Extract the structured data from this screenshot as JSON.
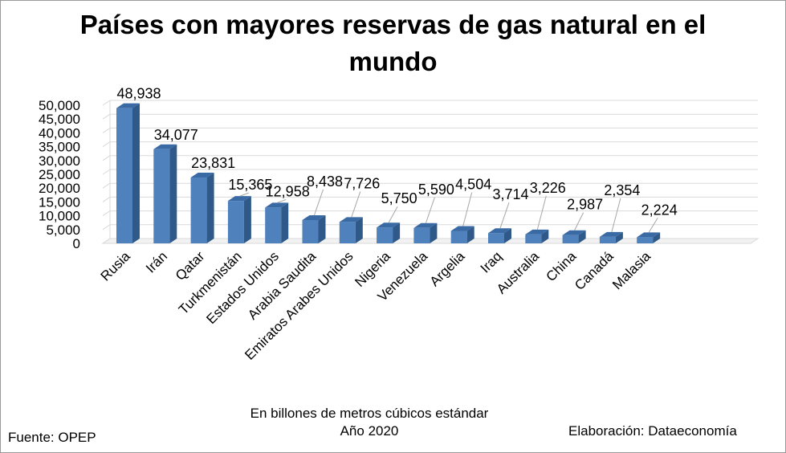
{
  "chart_data": {
    "type": "bar",
    "title_lines": [
      "Países con mayores reservas de gas natural en el",
      "mundo"
    ],
    "categories": [
      "Rusia",
      "Irán",
      "Qatar",
      "Turkmenistán",
      "Estados Unidos",
      "Arabia Saudita",
      "Emiratos Arabes Unidos",
      "Nigeria",
      "Venezuela",
      "Argelia",
      "Iraq",
      "Australia",
      "China",
      "Canadá",
      "Malasia"
    ],
    "values": [
      48938,
      34077,
      23831,
      15365,
      12958,
      8438,
      7726,
      5750,
      5590,
      4504,
      3714,
      3226,
      2987,
      2354,
      2224
    ],
    "value_labels": [
      "48,938",
      "34,077",
      "23,831",
      "15,365",
      "12,958",
      "8,438",
      "7,726",
      "5,750",
      "5,590",
      "4,504",
      "3,714",
      "3,226",
      "2,987",
      "2,354",
      "2,224"
    ],
    "ylim": [
      0,
      50000
    ],
    "yticks": [
      0,
      5000,
      10000,
      15000,
      20000,
      25000,
      30000,
      35000,
      40000,
      45000,
      50000
    ],
    "ytick_labels": [
      "0",
      "5,000",
      "10,000",
      "15,000",
      "20,000",
      "25,000",
      "30,000",
      "35,000",
      "40,000",
      "45,000",
      "50,000"
    ],
    "grid": true,
    "style": "3d-column",
    "bar_color": "#4f81bd"
  },
  "footer": {
    "units_line": "En billones de metros cúbicos estándar",
    "year_line": "Año 2020",
    "source": "Fuente: OPEP",
    "credit": "Elaboración: Dataeconomía"
  }
}
